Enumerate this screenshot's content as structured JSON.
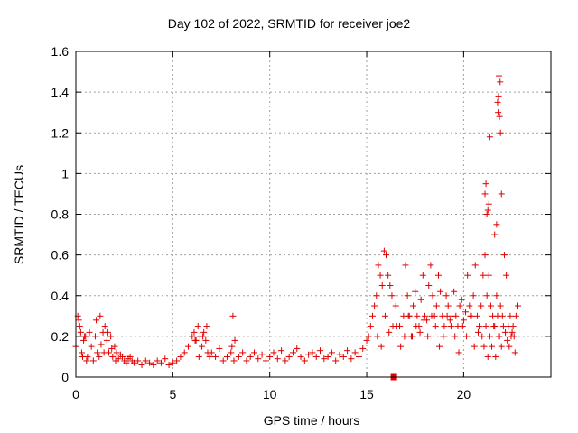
{
  "chart_data": {
    "type": "scatter",
    "title": "Day 102 of 2022, SRMTID for receiver joe2",
    "xlabel": "GPS time / hours",
    "ylabel": "SRMTID / TECUs",
    "xlim": [
      0,
      24.5
    ],
    "ylim": [
      0,
      1.6
    ],
    "xticks": [
      "0",
      "5",
      "10",
      "15",
      "20"
    ],
    "yticks": [
      "0",
      "0.2",
      "0.4",
      "0.6",
      "0.8",
      "1",
      "1.2",
      "1.4",
      "1.6"
    ],
    "grid": true,
    "marker": "+",
    "color": "#e00000",
    "series": [
      {
        "name": "SRMTID",
        "x": [
          0.0,
          0.1,
          0.2,
          0.3,
          0.4,
          0.5,
          0.6,
          0.7,
          0.8,
          0.9,
          1.0,
          1.1,
          1.2,
          1.3,
          1.4,
          1.5,
          1.6,
          1.7,
          1.8,
          1.9,
          2.0,
          2.1,
          2.2,
          2.3,
          2.4,
          2.5,
          2.6,
          2.7,
          2.8,
          2.9,
          3.0,
          3.2,
          3.4,
          3.6,
          3.8,
          4.0,
          4.2,
          4.4,
          4.6,
          4.8,
          5.0,
          5.2,
          5.4,
          5.6,
          5.8,
          6.0,
          6.1,
          6.2,
          6.3,
          6.4,
          6.5,
          6.6,
          6.7,
          6.8,
          6.9,
          7.0,
          7.2,
          7.4,
          7.6,
          7.8,
          8.0,
          8.1,
          8.2,
          8.4,
          8.6,
          8.8,
          9.0,
          9.2,
          9.4,
          9.6,
          9.8,
          10.0,
          10.2,
          10.4,
          10.6,
          10.8,
          11.0,
          11.2,
          11.4,
          11.6,
          11.8,
          12.0,
          12.2,
          12.4,
          12.6,
          12.8,
          13.0,
          13.2,
          13.4,
          13.6,
          13.8,
          14.0,
          14.2,
          14.4,
          14.6,
          14.8,
          15.0,
          15.1,
          15.2,
          15.3,
          15.4,
          15.5,
          15.6,
          15.7,
          15.8,
          15.9,
          16.0,
          16.1,
          16.2,
          16.3,
          16.5,
          16.7,
          16.9,
          17.0,
          17.1,
          17.2,
          17.3,
          17.4,
          17.5,
          17.6,
          17.7,
          17.8,
          17.9,
          18.0,
          18.1,
          18.2,
          18.3,
          18.4,
          18.5,
          18.6,
          18.7,
          18.8,
          18.9,
          19.0,
          19.1,
          19.2,
          19.3,
          19.4,
          19.5,
          19.6,
          19.7,
          19.8,
          19.9,
          20.0,
          20.1,
          20.2,
          20.3,
          20.4,
          20.5,
          20.6,
          20.7,
          20.8,
          20.9,
          21.0,
          21.1,
          21.2,
          21.3,
          21.4,
          21.5,
          21.6,
          21.7,
          21.8,
          21.9,
          22.0,
          22.1,
          22.2,
          22.3,
          22.4,
          22.5,
          22.6,
          22.7,
          22.8,
          0.15,
          0.25,
          0.35,
          0.45,
          0.55,
          1.05,
          1.25,
          1.45,
          1.65,
          1.85,
          2.05,
          6.15,
          6.35,
          6.55,
          6.75,
          8.05,
          8.15,
          15.55,
          15.75,
          15.95,
          16.15,
          16.35,
          16.55,
          16.75,
          16.95,
          17.15,
          17.35,
          17.55,
          17.75,
          17.95,
          18.15,
          18.35,
          18.55,
          18.75,
          18.95,
          19.15,
          19.35,
          19.55,
          19.75,
          19.95,
          20.15,
          20.35,
          20.55,
          20.75,
          20.95,
          21.05,
          21.15,
          21.25,
          21.35,
          21.45,
          21.55,
          21.65,
          21.75,
          21.85,
          21.95,
          22.05,
          22.15,
          22.25,
          22.35,
          22.45,
          22.55,
          22.65,
          21.1,
          21.15,
          21.2,
          21.25,
          21.3,
          21.35,
          21.75,
          21.78,
          21.8,
          21.82,
          21.85,
          21.88,
          21.9,
          21.95,
          21.6,
          21.7
        ],
        "y": [
          0.15,
          0.3,
          0.25,
          0.12,
          0.18,
          0.2,
          0.1,
          0.22,
          0.15,
          0.08,
          0.2,
          0.12,
          0.1,
          0.16,
          0.22,
          0.25,
          0.18,
          0.12,
          0.2,
          0.1,
          0.15,
          0.12,
          0.09,
          0.11,
          0.1,
          0.08,
          0.07,
          0.09,
          0.1,
          0.08,
          0.07,
          0.08,
          0.06,
          0.08,
          0.07,
          0.06,
          0.08,
          0.07,
          0.09,
          0.06,
          0.07,
          0.08,
          0.1,
          0.12,
          0.15,
          0.2,
          0.22,
          0.18,
          0.25,
          0.2,
          0.15,
          0.22,
          0.18,
          0.12,
          0.1,
          0.12,
          0.1,
          0.14,
          0.08,
          0.1,
          0.12,
          0.3,
          0.18,
          0.1,
          0.12,
          0.08,
          0.1,
          0.12,
          0.09,
          0.11,
          0.08,
          0.1,
          0.12,
          0.09,
          0.13,
          0.08,
          0.1,
          0.12,
          0.14,
          0.1,
          0.08,
          0.11,
          0.12,
          0.1,
          0.13,
          0.09,
          0.1,
          0.12,
          0.08,
          0.11,
          0.1,
          0.13,
          0.09,
          0.12,
          0.1,
          0.14,
          0.18,
          0.2,
          0.25,
          0.3,
          0.35,
          0.4,
          0.55,
          0.5,
          0.45,
          0.62,
          0.6,
          0.5,
          0.45,
          0.4,
          0.35,
          0.25,
          0.3,
          0.55,
          0.4,
          0.3,
          0.2,
          0.35,
          0.42,
          0.3,
          0.25,
          0.38,
          0.5,
          0.3,
          0.28,
          0.45,
          0.55,
          0.4,
          0.3,
          0.35,
          0.5,
          0.42,
          0.3,
          0.25,
          0.4,
          0.35,
          0.28,
          0.3,
          0.42,
          0.3,
          0.25,
          0.35,
          0.38,
          0.28,
          0.32,
          0.5,
          0.35,
          0.3,
          0.4,
          0.55,
          0.3,
          0.25,
          0.35,
          0.5,
          0.6,
          0.4,
          0.5,
          0.35,
          0.3,
          0.25,
          0.4,
          0.2,
          0.35,
          0.3,
          0.6,
          0.5,
          0.25,
          0.3,
          0.22,
          0.2,
          0.3,
          0.35,
          0.28,
          0.22,
          0.1,
          0.2,
          0.08,
          0.28,
          0.3,
          0.12,
          0.22,
          0.14,
          0.08,
          0.18,
          0.1,
          0.2,
          0.25,
          0.15,
          0.08,
          0.2,
          0.15,
          0.3,
          0.22,
          0.25,
          0.25,
          0.15,
          0.2,
          0.3,
          0.2,
          0.25,
          0.22,
          0.28,
          0.2,
          0.3,
          0.25,
          0.15,
          0.2,
          0.3,
          0.25,
          0.2,
          0.12,
          0.25,
          0.2,
          0.3,
          0.15,
          0.22,
          0.2,
          0.15,
          0.25,
          0.1,
          0.2,
          0.15,
          0.25,
          0.1,
          0.3,
          0.2,
          0.15,
          0.25,
          0.22,
          0.18,
          0.15,
          0.2,
          0.25,
          0.12,
          0.9,
          0.95,
          0.8,
          0.82,
          0.85,
          1.18,
          1.35,
          1.3,
          1.38,
          1.48,
          1.28,
          1.45,
          1.2,
          0.9,
          0.7,
          0.75
        ]
      }
    ],
    "marker_on_axis": {
      "x": 16.4,
      "y": 0
    }
  }
}
